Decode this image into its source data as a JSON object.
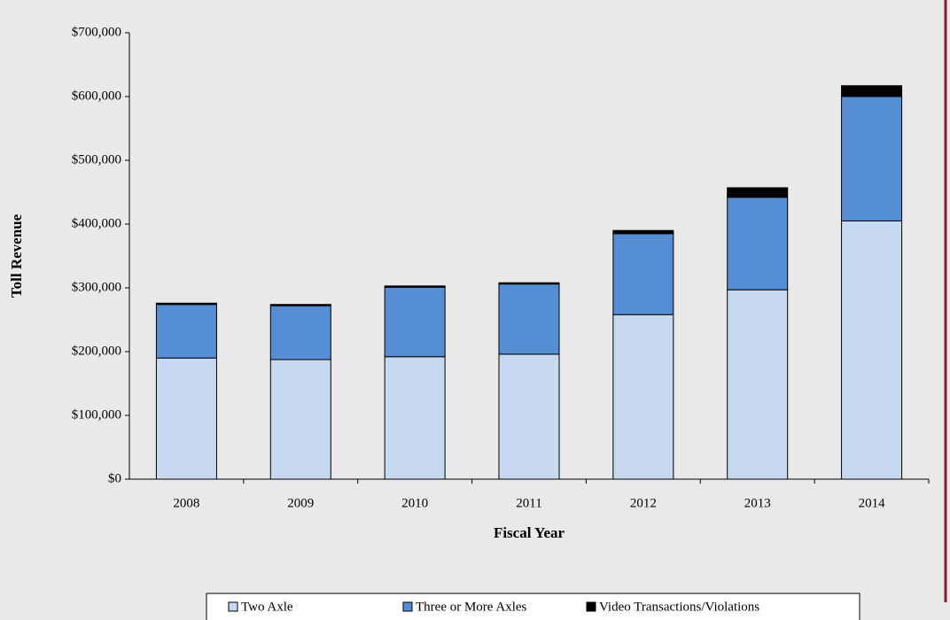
{
  "chart_data": {
    "type": "stacked_bar",
    "x_label": "Fiscal Year",
    "y_label": "Toll Revenue",
    "categories": [
      "2008",
      "2009",
      "2010",
      "2011",
      "2012",
      "2013",
      "2014"
    ],
    "series": [
      {
        "name": "Two Axle",
        "color": "#c6d9f1",
        "values": [
          190000,
          187500,
          192000,
          196000,
          258000,
          297000,
          405000
        ]
      },
      {
        "name": "Three or More Axles",
        "color": "#558ed5",
        "values": [
          84000,
          84500,
          109000,
          110000,
          127000,
          145000,
          195000
        ]
      },
      {
        "name": "Video Transactions/Violations",
        "color": "#000000",
        "values": [
          2000,
          2000,
          2000,
          2000,
          5000,
          15000,
          17000
        ]
      }
    ],
    "ylim": [
      0,
      700000
    ],
    "yticks": [
      {
        "value": 0,
        "label": "$0"
      },
      {
        "value": 100000,
        "label": "$100,000"
      },
      {
        "value": 200000,
        "label": "$200,000"
      },
      {
        "value": 300000,
        "label": "$300,000"
      },
      {
        "value": 400000,
        "label": "$400,000"
      },
      {
        "value": 500000,
        "label": "$500,000"
      },
      {
        "value": 600000,
        "label": "$600,000"
      },
      {
        "value": 700000,
        "label": "$700,000"
      }
    ],
    "legend": "bottom"
  }
}
